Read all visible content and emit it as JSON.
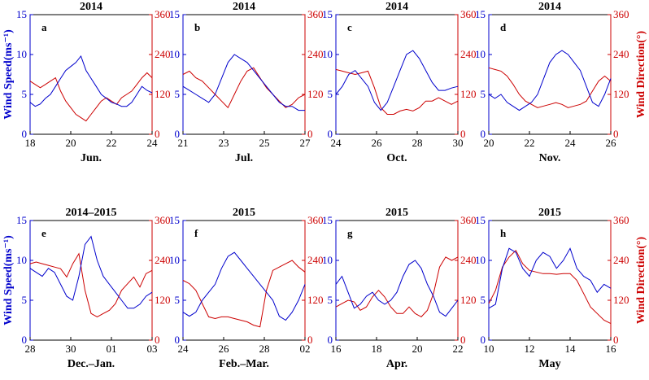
{
  "chart_data": {
    "type": "line",
    "left_axis": {
      "label": "Wind Speed(ms⁻¹)",
      "ylim": [
        0,
        15
      ],
      "ticks": [
        "0",
        "5",
        "10",
        "15"
      ],
      "color": "#0000cc"
    },
    "right_axis": {
      "label": "Wind Direction(°)",
      "ylim": [
        0,
        360
      ],
      "ticks": [
        "0",
        "120",
        "240",
        "360"
      ],
      "color": "#cc0000"
    },
    "panels": [
      {
        "letter": "a",
        "title": "2014",
        "xlabel": "Jun.",
        "xticks": [
          "18",
          "20",
          "22",
          "24"
        ],
        "speed": [
          4,
          3.5,
          3.8,
          4.5,
          5,
          6,
          7,
          8,
          8.5,
          9,
          9.8,
          8,
          7,
          6,
          5,
          4.5,
          4,
          3.8,
          3.5,
          3.5,
          4,
          5,
          6,
          5.5,
          5.2
        ],
        "direction": [
          160,
          150,
          140,
          150,
          160,
          170,
          130,
          100,
          80,
          60,
          50,
          40,
          60,
          80,
          100,
          110,
          100,
          90,
          110,
          120,
          130,
          150,
          170,
          185,
          170
        ]
      },
      {
        "letter": "b",
        "title": "2014",
        "xlabel": "Jul.",
        "xticks": [
          "21",
          "23",
          "25",
          "27"
        ],
        "speed": [
          6,
          5.5,
          5,
          4.5,
          4,
          5,
          7,
          9,
          10,
          9.5,
          9,
          8,
          7,
          6,
          5,
          4,
          3.5,
          3.5,
          3,
          3
        ],
        "direction": [
          180,
          190,
          170,
          160,
          140,
          120,
          100,
          80,
          120,
          160,
          190,
          200,
          170,
          140,
          120,
          100,
          80,
          90,
          110,
          120
        ]
      },
      {
        "letter": "c",
        "title": "2014",
        "xlabel": "Oct.",
        "xticks": [
          "24",
          "26",
          "28",
          "30"
        ],
        "speed": [
          5,
          6,
          7.5,
          8,
          7,
          6,
          4,
          3,
          4,
          6,
          8,
          10,
          10.5,
          9.5,
          8,
          6.5,
          5.5,
          5.5,
          5.8,
          6
        ],
        "direction": [
          195,
          190,
          185,
          180,
          185,
          190,
          140,
          80,
          60,
          60,
          70,
          75,
          70,
          80,
          100,
          100,
          110,
          100,
          90,
          100
        ]
      },
      {
        "letter": "d",
        "title": "2014",
        "xlabel": "Nov.",
        "xticks": [
          "20",
          "22",
          "24",
          "26"
        ],
        "speed": [
          5,
          4.5,
          5,
          4,
          3.5,
          3,
          3.5,
          4,
          5,
          7,
          9,
          10,
          10.5,
          10,
          9,
          8,
          6,
          4,
          3.5,
          5,
          7
        ],
        "direction": [
          200,
          195,
          190,
          175,
          150,
          120,
          100,
          90,
          80,
          85,
          90,
          95,
          90,
          80,
          85,
          90,
          100,
          130,
          160,
          175,
          160
        ]
      },
      {
        "letter": "e",
        "title": "2014–2015",
        "xlabel": "Dec.–Jan.",
        "xticks": [
          "28",
          "30",
          "01",
          "03"
        ],
        "speed": [
          9,
          8.5,
          8,
          9,
          8.5,
          7,
          5.5,
          5,
          8,
          12,
          13,
          10,
          8,
          7,
          6,
          5,
          4,
          4,
          4.5,
          5.5,
          6
        ],
        "direction": [
          230,
          235,
          230,
          225,
          220,
          215,
          190,
          230,
          260,
          150,
          80,
          70,
          80,
          90,
          110,
          150,
          170,
          190,
          160,
          200,
          210
        ]
      },
      {
        "letter": "f",
        "title": "2015",
        "xlabel": "Feb.–Mar.",
        "xticks": [
          "24",
          "26",
          "28",
          "02"
        ],
        "speed": [
          3.5,
          3,
          3.5,
          5,
          6,
          7,
          9,
          10.5,
          11,
          10,
          9,
          8,
          7,
          6,
          5,
          3,
          2.5,
          3.5,
          5,
          7
        ],
        "direction": [
          180,
          170,
          150,
          110,
          70,
          65,
          70,
          70,
          65,
          60,
          55,
          45,
          40,
          150,
          210,
          220,
          230,
          240,
          220,
          205
        ]
      },
      {
        "letter": "g",
        "title": "2015",
        "xlabel": "Apr.",
        "xticks": [
          "16",
          "18",
          "20",
          "22"
        ],
        "speed": [
          7,
          8,
          6,
          4,
          4.5,
          5.5,
          6,
          5,
          4.5,
          5,
          6,
          8,
          9.5,
          10,
          9,
          7,
          5.5,
          3.5,
          3,
          4,
          5
        ],
        "direction": [
          100,
          110,
          120,
          115,
          90,
          100,
          130,
          150,
          130,
          100,
          80,
          80,
          100,
          80,
          70,
          90,
          140,
          220,
          250,
          240,
          250
        ]
      },
      {
        "letter": "h",
        "title": "2015",
        "xlabel": "May",
        "xticks": [
          "10",
          "12",
          "14",
          "16"
        ],
        "speed": [
          4,
          4.5,
          9,
          11.5,
          11,
          9,
          8,
          10,
          11,
          10.5,
          9,
          10,
          11.5,
          9,
          8,
          7.5,
          6,
          7,
          6.5
        ],
        "direction": [
          110,
          150,
          220,
          250,
          270,
          230,
          210,
          205,
          200,
          200,
          198,
          200,
          200,
          180,
          140,
          100,
          80,
          60,
          50
        ]
      }
    ]
  }
}
